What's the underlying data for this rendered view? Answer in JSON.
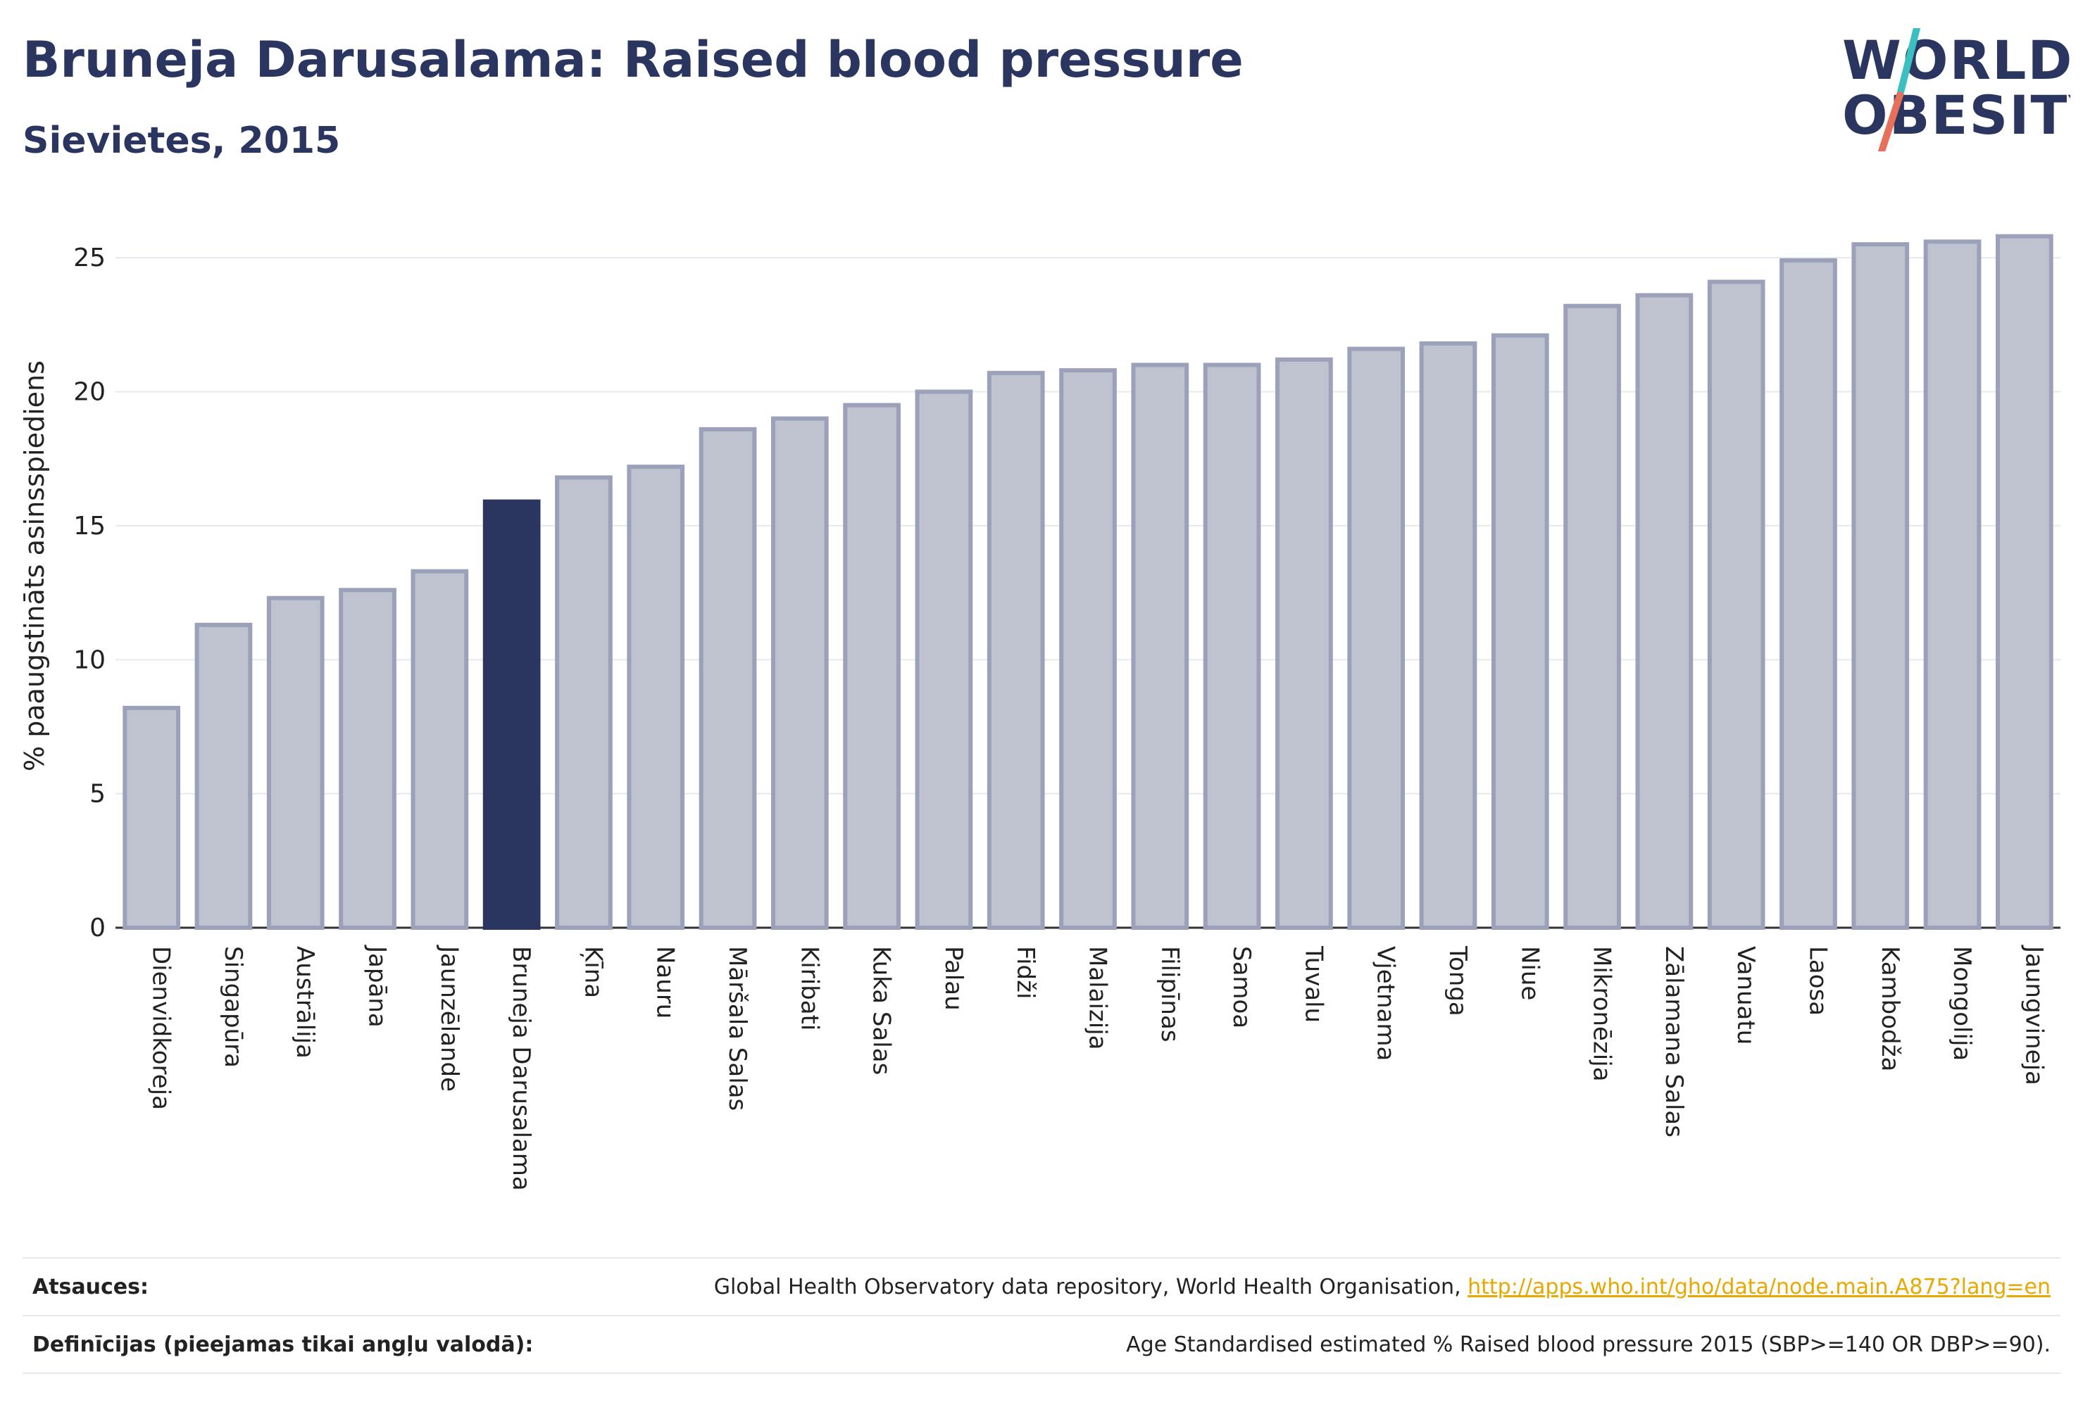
{
  "header": {
    "title": "Bruneja Darusalama: Raised blood pressure",
    "subtitle": "Sievietes, 2015"
  },
  "logo": {
    "line1": "WORLD",
    "line2": "OBESITY",
    "colors": {
      "text": "#2b3660",
      "slash_top": "#3cbfc1",
      "slash_bottom": "#e8705a"
    }
  },
  "chart_data": {
    "type": "bar",
    "title": "Bruneja Darusalama: Raised blood pressure",
    "subtitle": "Sievietes, 2015",
    "ylabel": "% paaugstināts asinsspiediens",
    "xlabel": "",
    "ylim": [
      0,
      27
    ],
    "yticks": [
      0,
      5,
      10,
      15,
      20,
      25
    ],
    "grid": true,
    "highlight": "Bruneja Darusalama",
    "colors": {
      "bar": "#bfc3d0",
      "bar_edge": "#9aa1b8",
      "highlight": "#2b3660",
      "grid": "#e6e8f0",
      "axis": "#333333"
    },
    "categories": [
      "Dienvidkoreja",
      "Singapūra",
      "Austrālija",
      "Japāna",
      "Jaunzēlande",
      "Bruneja Darusalama",
      "Ķīna",
      "Nauru",
      "Māršala Salas",
      "Kiribati",
      "Kuka Salas",
      "Palau",
      "Fidži",
      "Malaizija",
      "Filipīnas",
      "Samoa",
      "Tuvalu",
      "Vjetnama",
      "Tonga",
      "Niue",
      "Mikronēzija",
      "Zālamana Salas",
      "Vanuatu",
      "Laosa",
      "Kambodža",
      "Mongolija",
      "Jaungvineja"
    ],
    "values": [
      8.2,
      11.3,
      12.3,
      12.6,
      13.3,
      15.9,
      16.8,
      17.2,
      18.6,
      19.0,
      19.5,
      20.0,
      20.7,
      20.8,
      21.0,
      21.0,
      21.2,
      21.6,
      21.8,
      22.1,
      23.2,
      23.6,
      24.1,
      24.9,
      25.5,
      25.6,
      25.8
    ]
  },
  "footer": {
    "sources_label": "Atsauces:",
    "sources_text": "Global Health Observatory data repository, World Health Organisation, ",
    "sources_link": "http://apps.who.int/gho/data/node.main.A875?lang=en",
    "definitions_label": "Definīcijas (pieejamas tikai angļu valodā):",
    "definitions_text": "Age Standardised estimated % Raised blood pressure 2015 (SBP>=140 OR DBP>=90)."
  }
}
